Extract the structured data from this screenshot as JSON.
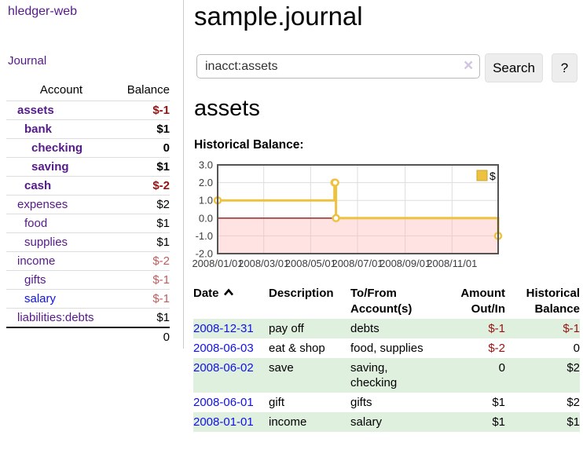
{
  "app": {
    "title": "sample.journal"
  },
  "sidebar": {
    "brand": "hledger-web",
    "nav": {
      "journal": "Journal"
    },
    "accounts_table": {
      "headers": {
        "account": "Account",
        "balance": "Balance"
      },
      "rows": [
        {
          "name": "assets",
          "indent": 0,
          "bold": true,
          "balance": "$-1",
          "balance_tone": "neg-strong"
        },
        {
          "name": "bank",
          "indent": 1,
          "bold": true,
          "balance": "$1",
          "balance_tone": "normal"
        },
        {
          "name": "checking",
          "indent": 2,
          "bold": true,
          "balance": "0",
          "balance_tone": "normal"
        },
        {
          "name": "saving",
          "indent": 2,
          "bold": true,
          "balance": "$1",
          "balance_tone": "normal"
        },
        {
          "name": "cash",
          "indent": 1,
          "bold": true,
          "balance": "$-2",
          "balance_tone": "neg-strong"
        },
        {
          "name": "expenses",
          "indent": 0,
          "bold": false,
          "balance": "$2",
          "balance_tone": "normal"
        },
        {
          "name": "food",
          "indent": 1,
          "bold": false,
          "balance": "$1",
          "balance_tone": "normal"
        },
        {
          "name": "supplies",
          "indent": 1,
          "bold": false,
          "balance": "$1",
          "balance_tone": "normal"
        },
        {
          "name": "income",
          "indent": 0,
          "bold": false,
          "balance": "$-2",
          "balance_tone": "neg-soft"
        },
        {
          "name": "gifts",
          "indent": 1,
          "bold": false,
          "balance": "$-1",
          "balance_tone": "neg-soft"
        },
        {
          "name": "salary",
          "indent": 1,
          "bold": false,
          "balance": "$-1",
          "balance_tone": "neg-soft",
          "link_tone": "unvisited"
        },
        {
          "name": "liabilities:debts",
          "indent": 0,
          "bold": false,
          "balance": "$1",
          "balance_tone": "normal"
        }
      ],
      "total": "0"
    }
  },
  "search": {
    "value": "inacct:assets",
    "clear_icon": "×",
    "button_label": "Search",
    "help_label": "?"
  },
  "main": {
    "account_heading": "assets",
    "chart_label": "Historical Balance:"
  },
  "chart_data": {
    "type": "line",
    "title": "Historical Balance:",
    "series": [
      {
        "name": "$",
        "color": "#edc240",
        "steps": true,
        "points": [
          [
            "2008-01-01",
            1.0
          ],
          [
            "2008-06-01",
            2.0
          ],
          [
            "2008-06-02",
            2.0
          ],
          [
            "2008-06-03",
            0.0
          ],
          [
            "2008-12-31",
            -1.0
          ]
        ]
      }
    ],
    "xlabel": "",
    "ylabel": "",
    "x_domain": [
      "2008-01-01",
      "2008-12-31"
    ],
    "ylim": [
      -2,
      3
    ],
    "x_ticks": [
      {
        "t": "2008-01-01",
        "label": "2008/01/01"
      },
      {
        "t": "2008-03-01",
        "label": "2008/03/01"
      },
      {
        "t": "2008-05-01",
        "label": "2008/05/01"
      },
      {
        "t": "2008-07-01",
        "label": "2008/07/01"
      },
      {
        "t": "2008-09-01",
        "label": "2008/09/01"
      },
      {
        "t": "2008-11-01",
        "label": "2008/11/01"
      }
    ],
    "y_ticks": [
      {
        "v": 3,
        "label": "3.0"
      },
      {
        "v": 2,
        "label": "2.0"
      },
      {
        "v": 1,
        "label": "1.0"
      },
      {
        "v": 0,
        "label": "0.0"
      },
      {
        "v": -1,
        "label": "-1.0"
      },
      {
        "v": -2,
        "label": "-2.0"
      }
    ],
    "grid": true,
    "legend_position": "top-right",
    "colors": {
      "frame": "#545454",
      "grid": "#dddddd",
      "axis_text": "#3c3c3c",
      "negative_region_fill": "#ffb3b3",
      "negative_region_opacity": 0.38,
      "zero_line": "#8b1a1a",
      "marker_fill": "#ffffff",
      "legend_box_border": "#c9a42f"
    }
  },
  "register": {
    "headers": {
      "date": "Date",
      "description": "Description",
      "accounts": "To/From Account(s)",
      "amount": "Amount Out/In",
      "balance": "Historical Balance"
    },
    "rows": [
      {
        "date": "2008-12-31",
        "description": "pay off",
        "accounts": "debts",
        "amount": "$-1",
        "balance": "$-1",
        "amount_neg": true,
        "balance_neg": true
      },
      {
        "date": "2008-06-03",
        "description": "eat & shop",
        "accounts": "food, supplies",
        "amount": "$-2",
        "balance": "0",
        "amount_neg": true,
        "balance_neg": false
      },
      {
        "date": "2008-06-02",
        "description": "save",
        "accounts": "saving, checking",
        "amount": "0",
        "balance": "$2",
        "amount_neg": false,
        "balance_neg": false
      },
      {
        "date": "2008-06-01",
        "description": "gift",
        "accounts": "gifts",
        "amount": "$1",
        "balance": "$2",
        "amount_neg": false,
        "balance_neg": false
      },
      {
        "date": "2008-01-01",
        "description": "income",
        "accounts": "salary",
        "amount": "$1",
        "balance": "$1",
        "amount_neg": false,
        "balance_neg": false
      }
    ]
  },
  "colors": {
    "link_purple": "#551a8b",
    "link_blue": "#1010e8",
    "neg_strong": "#991111",
    "neg_soft": "#c05c5c",
    "row_green": "#dff0df",
    "chart_line": "#edc240"
  }
}
